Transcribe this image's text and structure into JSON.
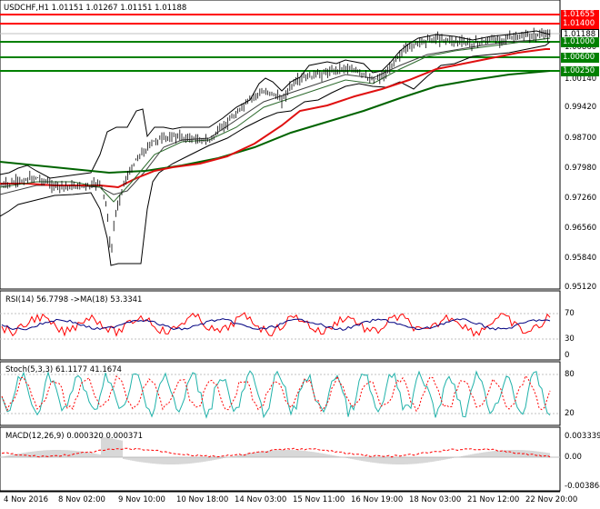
{
  "symbol_title": "USDCHF,H1  1.01151 1.01267 1.01151 1.01188",
  "price_axis": [
    "1.01655",
    "1.01400",
    "1.01188",
    "1.01000",
    "1.00860",
    "1.00600",
    "1.00250",
    "1.00140",
    "0.99420",
    "0.98700",
    "0.97980",
    "0.97260",
    "0.96560",
    "0.95840",
    "0.95120"
  ],
  "level_boxes": [
    {
      "value": "1.01655",
      "color": "#ff0000"
    },
    {
      "value": "1.01400",
      "color": "#ff0000"
    },
    {
      "value": "1.01188",
      "color": "#ffffff",
      "text_color": "#000000"
    },
    {
      "value": "1.01000",
      "color": "#008000"
    },
    {
      "value": "1.00600",
      "color": "#008000"
    },
    {
      "value": "1.00250",
      "color": "#008000"
    }
  ],
  "rsi": {
    "title": "RSI(14) 56.7798  ->MA(18) 53.3341",
    "axis": [
      "70",
      "30",
      "0"
    ]
  },
  "stoch": {
    "title": "Stoch(5,3,3) 61.1177 41.1674",
    "axis": [
      "80",
      "20"
    ]
  },
  "macd": {
    "title": "MACD(12,26,9) 0.000320 0.000371",
    "axis": [
      "0.003339",
      "0.00",
      "-0.003864"
    ]
  },
  "time_axis": [
    "4 Nov 2016",
    "8 Nov 02:00",
    "9 Nov 10:00",
    "10 Nov 18:00",
    "14 Nov 03:00",
    "15 Nov 11:00",
    "16 Nov 19:00",
    "18 Nov 03:00",
    "21 Nov 12:00",
    "22 Nov 20:00"
  ],
  "colors": {
    "resistance": "#ff0000",
    "support": "#008000",
    "ma_red": "#e01010",
    "ma_green": "#006400",
    "bands": "#000000",
    "rsi_line": "#ff0000",
    "rsi_ma": "#000080",
    "stoch_main": "#20b2aa",
    "stoch_signal": "#ff0000",
    "macd_hist": "#b0b0b0",
    "macd_signal": "#ff0000"
  }
}
